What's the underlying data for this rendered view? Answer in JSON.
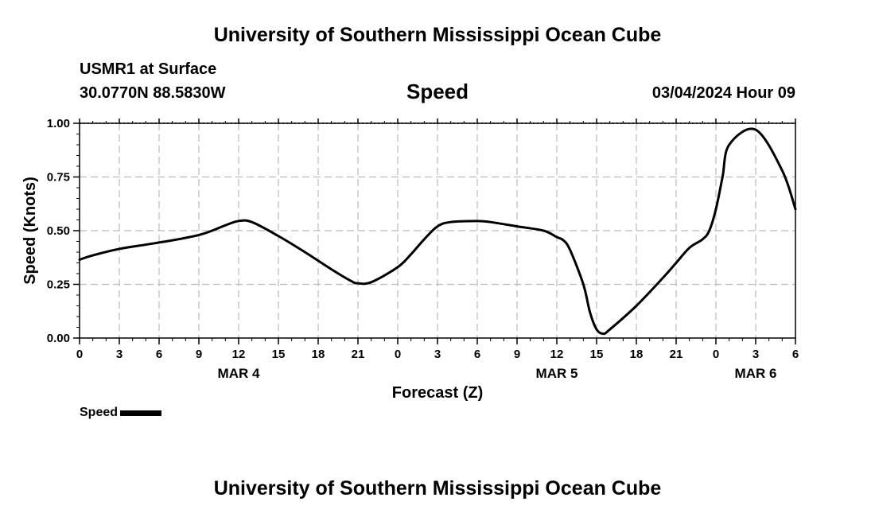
{
  "header": {
    "title": "University of Southern Mississippi Ocean Cube",
    "station": "USMR1 at Surface",
    "coords": "30.0770N  88.5830W",
    "datetime": "03/04/2024 Hour 09"
  },
  "footer": {
    "title": "University of Southern Mississippi Ocean Cube"
  },
  "legend": {
    "label": "Speed"
  },
  "chart_data": {
    "type": "line",
    "title": "Speed",
    "xlabel": "Forecast (Z)",
    "ylabel": "Speed (Knots)",
    "xlim": [
      0,
      54
    ],
    "ylim": [
      0,
      1
    ],
    "x_unit": "hours since MAR 4 00Z",
    "x_ticks": [
      0,
      3,
      6,
      9,
      12,
      15,
      18,
      21,
      24,
      27,
      30,
      33,
      36,
      39,
      42,
      45,
      48,
      51,
      54
    ],
    "x_tick_labels": [
      "0",
      "3",
      "6",
      "9",
      "12",
      "15",
      "18",
      "21",
      "0",
      "3",
      "6",
      "9",
      "12",
      "15",
      "18",
      "21",
      "0",
      "3",
      "6"
    ],
    "y_ticks": [
      0,
      0.25,
      0.5,
      0.75,
      1
    ],
    "y_tick_labels": [
      "0.00",
      "0.25",
      "0.50",
      "0.75",
      "1.00"
    ],
    "date_labels": [
      {
        "x": 12,
        "label": "MAR 4"
      },
      {
        "x": 36,
        "label": "MAR 5"
      },
      {
        "x": 51,
        "label": "MAR 6"
      }
    ],
    "grid": true,
    "line_color": "#000000",
    "series": [
      {
        "name": "Speed",
        "x": [
          0,
          1,
          3,
          5,
          7,
          9,
          10,
          11,
          12,
          13,
          15,
          17,
          19,
          20.5,
          21,
          22,
          24,
          25,
          26,
          27,
          28,
          30,
          31,
          33,
          35,
          36,
          36.5,
          37,
          38,
          38.5,
          39,
          39.5,
          40,
          42,
          44,
          45,
          46,
          47,
          47.5,
          48,
          48.5,
          49,
          51,
          53,
          54
        ],
        "values": [
          0.365,
          0.385,
          0.415,
          0.435,
          0.455,
          0.48,
          0.5,
          0.525,
          0.545,
          0.54,
          0.475,
          0.4,
          0.32,
          0.265,
          0.255,
          0.26,
          0.33,
          0.39,
          0.46,
          0.52,
          0.54,
          0.545,
          0.54,
          0.52,
          0.5,
          0.47,
          0.455,
          0.41,
          0.25,
          0.12,
          0.04,
          0.02,
          0.04,
          0.15,
          0.28,
          0.35,
          0.42,
          0.46,
          0.5,
          0.6,
          0.75,
          0.9,
          0.97,
          0.78,
          0.6
        ]
      }
    ]
  }
}
